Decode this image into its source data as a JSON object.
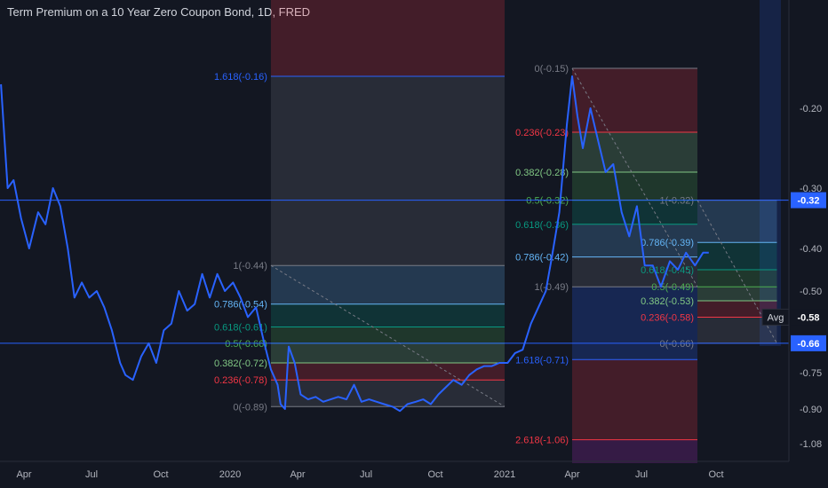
{
  "title": "Term Premium on a 10 Year Zero Coupon Bond, 1D, FRED",
  "colors": {
    "background": "#131722",
    "series": "#2962ff",
    "axis_text": "#b2b5be",
    "price_label_bg": "#2962ff",
    "avg_label_bg": "#131722",
    "hline": "#2962ff"
  },
  "chart_data": {
    "type": "line",
    "title": "Term Premium on a 10 Year Zero Coupon Bond, 1D, FRED",
    "xlabel": "",
    "ylabel": "",
    "x_ticks": [
      "Apr",
      "Jul",
      "Oct",
      "2020",
      "Apr",
      "Jul",
      "Oct",
      "2021",
      "Apr",
      "Jul",
      "Oct"
    ],
    "y_ticks": [
      "-0.20",
      "-0.30",
      "-0.40",
      "-0.50",
      "-0.75",
      "-0.90",
      "-1.08"
    ],
    "price_labels": [
      {
        "label": "-0.32",
        "value": -0.32,
        "style": "blue"
      },
      {
        "label": "-0.58",
        "value": -0.58,
        "style": "avg",
        "tag": "Avg"
      },
      {
        "label": "-0.66",
        "value": -0.66,
        "style": "blue"
      }
    ],
    "horizontal_lines": [
      -0.32,
      -0.66
    ],
    "series": [
      {
        "x": [
          "2019-03-01",
          "2019-03-10",
          "2019-03-18",
          "2019-03-28",
          "2019-04-08",
          "2019-04-20",
          "2019-04-30",
          "2019-05-10",
          "2019-05-20",
          "2019-05-30",
          "2019-06-08",
          "2019-06-18",
          "2019-06-28",
          "2019-07-08",
          "2019-07-18",
          "2019-07-28",
          "2019-08-08",
          "2019-08-15",
          "2019-08-25",
          "2019-09-05",
          "2019-09-15",
          "2019-09-25",
          "2019-10-05",
          "2019-10-15",
          "2019-10-25",
          "2019-11-05",
          "2019-11-15",
          "2019-11-25",
          "2019-12-05",
          "2019-12-15",
          "2019-12-25",
          "2020-01-05",
          "2020-01-15",
          "2020-01-25",
          "2020-02-05",
          "2020-02-15",
          "2020-02-25",
          "2020-03-05",
          "2020-03-09",
          "2020-03-15",
          "2020-03-20",
          "2020-03-28",
          "2020-04-05",
          "2020-04-15",
          "2020-04-25",
          "2020-05-05",
          "2020-05-15",
          "2020-05-25",
          "2020-06-05",
          "2020-06-15",
          "2020-06-25",
          "2020-07-05",
          "2020-07-15",
          "2020-07-25",
          "2020-08-05",
          "2020-08-15",
          "2020-08-25",
          "2020-09-05",
          "2020-09-15",
          "2020-09-25",
          "2020-10-05",
          "2020-10-15",
          "2020-10-25",
          "2020-11-05",
          "2020-11-15",
          "2020-11-25",
          "2020-12-05",
          "2020-12-15",
          "2020-12-25",
          "2021-01-05",
          "2021-01-15",
          "2021-01-25",
          "2021-02-05",
          "2021-02-15",
          "2021-02-25",
          "2021-03-05",
          "2021-03-15",
          "2021-03-25",
          "2021-04-01",
          "2021-04-08",
          "2021-04-15",
          "2021-04-25",
          "2021-05-05",
          "2021-05-15",
          "2021-05-25",
          "2021-06-05",
          "2021-06-15",
          "2021-06-25",
          "2021-07-05",
          "2021-07-15",
          "2021-07-25",
          "2021-08-05",
          "2021-08-15",
          "2021-08-25",
          "2021-09-05",
          "2021-09-15",
          "2021-09-22"
        ],
        "y": [
          -0.17,
          -0.3,
          -0.29,
          -0.35,
          -0.4,
          -0.34,
          -0.36,
          -0.3,
          -0.33,
          -0.4,
          -0.52,
          -0.48,
          -0.52,
          -0.5,
          -0.55,
          -0.62,
          -0.72,
          -0.76,
          -0.78,
          -0.7,
          -0.66,
          -0.72,
          -0.62,
          -0.6,
          -0.5,
          -0.56,
          -0.54,
          -0.46,
          -0.52,
          -0.46,
          -0.5,
          -0.48,
          -0.52,
          -0.58,
          -0.55,
          -0.65,
          -0.74,
          -0.8,
          -0.88,
          -0.9,
          -0.67,
          -0.72,
          -0.84,
          -0.86,
          -0.85,
          -0.87,
          -0.86,
          -0.85,
          -0.86,
          -0.8,
          -0.87,
          -0.86,
          -0.87,
          -0.88,
          -0.89,
          -0.91,
          -0.88,
          -0.87,
          -0.86,
          -0.88,
          -0.84,
          -0.81,
          -0.78,
          -0.8,
          -0.76,
          -0.74,
          -0.73,
          -0.73,
          -0.72,
          -0.72,
          -0.69,
          -0.68,
          -0.6,
          -0.55,
          -0.5,
          -0.42,
          -0.34,
          -0.22,
          -0.16,
          -0.21,
          -0.25,
          -0.2,
          -0.24,
          -0.28,
          -0.27,
          -0.34,
          -0.38,
          -0.33,
          -0.44,
          -0.44,
          -0.49,
          -0.43,
          -0.45,
          -0.41,
          -0.44,
          -0.41,
          -0.41
        ]
      }
    ],
    "fib_retracements": [
      {
        "name": "fib-1",
        "x_start": "2020-02-25",
        "x_end": "2021-01-01",
        "trend": {
          "from": {
            "x": "2020-02-25",
            "y": -0.44
          },
          "to": {
            "x": "2021-01-01",
            "y": -0.89
          }
        },
        "levels": [
          {
            "label": "1.618(-0.16)",
            "value": -0.16,
            "color": "#2962ff"
          },
          {
            "label": "1(-0.44)",
            "value": -0.44,
            "color": "#787b86"
          },
          {
            "label": "0.786(-0.54)",
            "value": -0.54,
            "color": "#64b5f6"
          },
          {
            "label": "0.618(-0.61)",
            "value": -0.61,
            "color": "#089981"
          },
          {
            "label": "0.5(-0.66)",
            "value": -0.66,
            "color": "#4caf50"
          },
          {
            "label": "0.382(-0.72)",
            "value": -0.72,
            "color": "#81c784"
          },
          {
            "label": "0.236(-0.78)",
            "value": -0.78,
            "color": "#f23645"
          },
          {
            "label": "0(-0.89)",
            "value": -0.89,
            "color": "#787b86"
          }
        ]
      },
      {
        "name": "fib-2",
        "x_start": "2021-04-01",
        "x_end": "2021-09-08",
        "trend": {
          "from": {
            "x": "2021-04-01",
            "y": -0.15
          },
          "to": {
            "x": "2021-09-08",
            "y": -0.49
          }
        },
        "levels": [
          {
            "label": "0(-0.15)",
            "value": -0.15,
            "color": "#787b86"
          },
          {
            "label": "0.236(-0.23)",
            "value": -0.23,
            "color": "#f23645"
          },
          {
            "label": "0.382(-0.28)",
            "value": -0.28,
            "color": "#81c784"
          },
          {
            "label": "0.5(-0.32)",
            "value": -0.32,
            "color": "#4caf50"
          },
          {
            "label": "0.618(-0.36)",
            "value": -0.36,
            "color": "#089981"
          },
          {
            "label": "0.786(-0.42)",
            "value": -0.42,
            "color": "#64b5f6"
          },
          {
            "label": "1(-0.49)",
            "value": -0.49,
            "color": "#787b86"
          },
          {
            "label": "1.618(-0.71)",
            "value": -0.71,
            "color": "#2962ff"
          },
          {
            "label": "2.618(-1.06)",
            "value": -1.06,
            "color": "#f23645"
          }
        ]
      },
      {
        "name": "fib-3",
        "x_start": "2021-09-08",
        "x_end": "2021-12-15",
        "trend": {
          "from": {
            "x": "2021-09-08",
            "y": -0.32
          },
          "to": {
            "x": "2021-12-15",
            "y": -0.66
          }
        },
        "levels": [
          {
            "label": "1(-0.32)",
            "value": -0.32,
            "color": "#787b86"
          },
          {
            "label": "0.786(-0.39)",
            "value": -0.39,
            "color": "#64b5f6"
          },
          {
            "label": "0.618(-0.45)",
            "value": -0.45,
            "color": "#089981"
          },
          {
            "label": "0.5(-0.49)",
            "value": -0.49,
            "color": "#4caf50"
          },
          {
            "label": "0.382(-0.53)",
            "value": -0.53,
            "color": "#81c784"
          },
          {
            "label": "0.236(-0.58)",
            "value": -0.58,
            "color": "#f23645"
          },
          {
            "label": "0(-0.66)",
            "value": -0.66,
            "color": "#787b86"
          }
        ]
      }
    ]
  }
}
